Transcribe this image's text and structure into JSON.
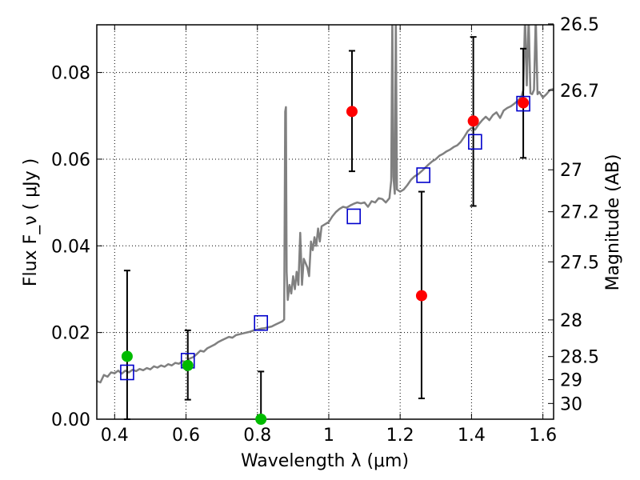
{
  "chart_data": {
    "type": "scatter",
    "xlabel": "Wavelength  λ (μm)",
    "ylabel": "Flux  F_ν  ( μJy )",
    "y2label": "Magnitude (AB)",
    "xlim": [
      0.35,
      1.63
    ],
    "ylim": [
      0.0,
      0.091
    ],
    "grid": true,
    "x_ticks": [
      {
        "value": 0.4,
        "label": "0.4"
      },
      {
        "value": 0.6,
        "label": "0.6"
      },
      {
        "value": 0.8,
        "label": "0.8"
      },
      {
        "value": 1.0,
        "label": "1"
      },
      {
        "value": 1.2,
        "label": "1.2"
      },
      {
        "value": 1.4,
        "label": "1.4"
      },
      {
        "value": 1.6,
        "label": "1.6"
      }
    ],
    "y_ticks": [
      {
        "value": 0.0,
        "label": "0.00"
      },
      {
        "value": 0.02,
        "label": "0.02"
      },
      {
        "value": 0.04,
        "label": "0.04"
      },
      {
        "value": 0.06,
        "label": "0.06"
      },
      {
        "value": 0.08,
        "label": "0.08"
      }
    ],
    "y2_ticks": [
      {
        "value": 26.5,
        "label": "26.5"
      },
      {
        "value": 26.7,
        "label": "26.7"
      },
      {
        "value": 27.0,
        "label": "27"
      },
      {
        "value": 27.2,
        "label": "27.2"
      },
      {
        "value": 27.5,
        "label": "27.5"
      },
      {
        "value": 28.0,
        "label": "28"
      },
      {
        "value": 28.5,
        "label": "28.5"
      },
      {
        "value": 29.0,
        "label": "29"
      },
      {
        "value": 30.0,
        "label": "30"
      }
    ],
    "colors": {
      "model": "#808080",
      "template": "#0000cc",
      "detection": "#ff0000",
      "optical": "#00bb00",
      "errorbar": "#000000"
    },
    "model_spectrum": [
      [
        0.35,
        0.0088
      ],
      [
        0.36,
        0.0085
      ],
      [
        0.37,
        0.0102
      ],
      [
        0.38,
        0.0098
      ],
      [
        0.39,
        0.0108
      ],
      [
        0.4,
        0.0106
      ],
      [
        0.41,
        0.0112
      ],
      [
        0.42,
        0.0105
      ],
      [
        0.43,
        0.0112
      ],
      [
        0.44,
        0.0108
      ],
      [
        0.45,
        0.0114
      ],
      [
        0.46,
        0.0111
      ],
      [
        0.47,
        0.0116
      ],
      [
        0.48,
        0.0113
      ],
      [
        0.49,
        0.0118
      ],
      [
        0.5,
        0.0115
      ],
      [
        0.51,
        0.0122
      ],
      [
        0.52,
        0.0119
      ],
      [
        0.53,
        0.0124
      ],
      [
        0.54,
        0.0121
      ],
      [
        0.55,
        0.0127
      ],
      [
        0.56,
        0.0124
      ],
      [
        0.57,
        0.013
      ],
      [
        0.58,
        0.0128
      ],
      [
        0.59,
        0.0134
      ],
      [
        0.6,
        0.0132
      ],
      [
        0.61,
        0.014
      ],
      [
        0.62,
        0.0143
      ],
      [
        0.63,
        0.015
      ],
      [
        0.64,
        0.0158
      ],
      [
        0.65,
        0.0156
      ],
      [
        0.66,
        0.0164
      ],
      [
        0.67,
        0.0168
      ],
      [
        0.68,
        0.0172
      ],
      [
        0.69,
        0.0178
      ],
      [
        0.7,
        0.0182
      ],
      [
        0.71,
        0.0186
      ],
      [
        0.72,
        0.019
      ],
      [
        0.73,
        0.0188
      ],
      [
        0.74,
        0.0194
      ],
      [
        0.75,
        0.0196
      ],
      [
        0.76,
        0.0198
      ],
      [
        0.77,
        0.02
      ],
      [
        0.78,
        0.0202
      ],
      [
        0.79,
        0.0205
      ],
      [
        0.8,
        0.0207
      ],
      [
        0.81,
        0.0209
      ],
      [
        0.82,
        0.021
      ],
      [
        0.83,
        0.0212
      ],
      [
        0.84,
        0.0214
      ],
      [
        0.85,
        0.0218
      ],
      [
        0.86,
        0.0222
      ],
      [
        0.87,
        0.0226
      ],
      [
        0.875,
        0.023
      ],
      [
        0.878,
        0.071
      ],
      [
        0.88,
        0.072
      ],
      [
        0.882,
        0.034
      ],
      [
        0.885,
        0.0275
      ],
      [
        0.89,
        0.031
      ],
      [
        0.895,
        0.029
      ],
      [
        0.9,
        0.033
      ],
      [
        0.905,
        0.03
      ],
      [
        0.91,
        0.034
      ],
      [
        0.915,
        0.031
      ],
      [
        0.92,
        0.043
      ],
      [
        0.925,
        0.031
      ],
      [
        0.93,
        0.037
      ],
      [
        0.935,
        0.036
      ],
      [
        0.94,
        0.035
      ],
      [
        0.945,
        0.033
      ],
      [
        0.95,
        0.041
      ],
      [
        0.955,
        0.039
      ],
      [
        0.96,
        0.042
      ],
      [
        0.965,
        0.04
      ],
      [
        0.97,
        0.044
      ],
      [
        0.975,
        0.041
      ],
      [
        0.98,
        0.0445
      ],
      [
        0.99,
        0.045
      ],
      [
        1.0,
        0.0455
      ],
      [
        1.01,
        0.0468
      ],
      [
        1.02,
        0.0478
      ],
      [
        1.03,
        0.0485
      ],
      [
        1.04,
        0.049
      ],
      [
        1.05,
        0.0488
      ],
      [
        1.06,
        0.0493
      ],
      [
        1.07,
        0.0497
      ],
      [
        1.08,
        0.05
      ],
      [
        1.09,
        0.0498
      ],
      [
        1.1,
        0.05
      ],
      [
        1.11,
        0.049
      ],
      [
        1.12,
        0.0503
      ],
      [
        1.13,
        0.05
      ],
      [
        1.14,
        0.051
      ],
      [
        1.15,
        0.0508
      ],
      [
        1.16,
        0.05
      ],
      [
        1.17,
        0.051
      ],
      [
        1.175,
        0.055
      ],
      [
        1.178,
        0.093
      ],
      [
        1.181,
        0.056
      ],
      [
        1.185,
        0.052
      ],
      [
        1.188,
        0.093
      ],
      [
        1.191,
        0.053
      ],
      [
        1.2,
        0.0525
      ],
      [
        1.21,
        0.053
      ],
      [
        1.22,
        0.054
      ],
      [
        1.23,
        0.0552
      ],
      [
        1.24,
        0.056
      ],
      [
        1.25,
        0.0565
      ],
      [
        1.26,
        0.0572
      ],
      [
        1.27,
        0.058
      ],
      [
        1.28,
        0.0588
      ],
      [
        1.29,
        0.0595
      ],
      [
        1.3,
        0.06
      ],
      [
        1.31,
        0.0608
      ],
      [
        1.32,
        0.0612
      ],
      [
        1.33,
        0.0618
      ],
      [
        1.34,
        0.0622
      ],
      [
        1.35,
        0.0628
      ],
      [
        1.36,
        0.0632
      ],
      [
        1.37,
        0.064
      ],
      [
        1.38,
        0.0652
      ],
      [
        1.39,
        0.0665
      ],
      [
        1.4,
        0.0672
      ],
      [
        1.41,
        0.0668
      ],
      [
        1.42,
        0.068
      ],
      [
        1.43,
        0.069
      ],
      [
        1.44,
        0.0698
      ],
      [
        1.45,
        0.069
      ],
      [
        1.46,
        0.0702
      ],
      [
        1.47,
        0.0708
      ],
      [
        1.48,
        0.0695
      ],
      [
        1.49,
        0.0712
      ],
      [
        1.5,
        0.0718
      ],
      [
        1.51,
        0.0722
      ],
      [
        1.52,
        0.0728
      ],
      [
        1.53,
        0.0735
      ],
      [
        1.54,
        0.0745
      ],
      [
        1.545,
        0.076
      ],
      [
        1.55,
        0.093
      ],
      [
        1.555,
        0.077
      ],
      [
        1.56,
        0.093
      ],
      [
        1.565,
        0.0752
      ],
      [
        1.57,
        0.075
      ],
      [
        1.575,
        0.076
      ],
      [
        1.58,
        0.093
      ],
      [
        1.585,
        0.075
      ],
      [
        1.59,
        0.0755
      ],
      [
        1.6,
        0.0742
      ],
      [
        1.61,
        0.075
      ],
      [
        1.62,
        0.076
      ],
      [
        1.63,
        0.0762
      ]
    ],
    "series": [
      {
        "marker": "square",
        "color": "#0000cc",
        "points": [
          {
            "x": 0.435,
            "y": 0.0108
          },
          {
            "x": 0.605,
            "y": 0.0135
          },
          {
            "x": 0.81,
            "y": 0.0222
          },
          {
            "x": 1.07,
            "y": 0.0468
          },
          {
            "x": 1.265,
            "y": 0.0563
          },
          {
            "x": 1.41,
            "y": 0.064
          },
          {
            "x": 1.545,
            "y": 0.0728
          }
        ]
      },
      {
        "marker": "circle",
        "color": "#00bb00",
        "points": [
          {
            "x": 0.435,
            "y": 0.0145,
            "ylo": 0.0,
            "yhi": 0.0343
          },
          {
            "x": 0.605,
            "y": 0.0124,
            "ylo": 0.0045,
            "yhi": 0.0205
          },
          {
            "x": 0.81,
            "y": 0.0,
            "ylo": 0.0,
            "yhi": 0.011
          }
        ]
      },
      {
        "marker": "circle",
        "color": "#ff0000",
        "points": [
          {
            "x": 1.065,
            "y": 0.071,
            "ylo": 0.0572,
            "yhi": 0.085
          },
          {
            "x": 1.26,
            "y": 0.0285,
            "ylo": 0.0048,
            "yhi": 0.0525
          },
          {
            "x": 1.405,
            "y": 0.0688,
            "ylo": 0.0492,
            "yhi": 0.0882
          },
          {
            "x": 1.545,
            "y": 0.073,
            "ylo": 0.0603,
            "yhi": 0.0855
          }
        ]
      }
    ]
  }
}
